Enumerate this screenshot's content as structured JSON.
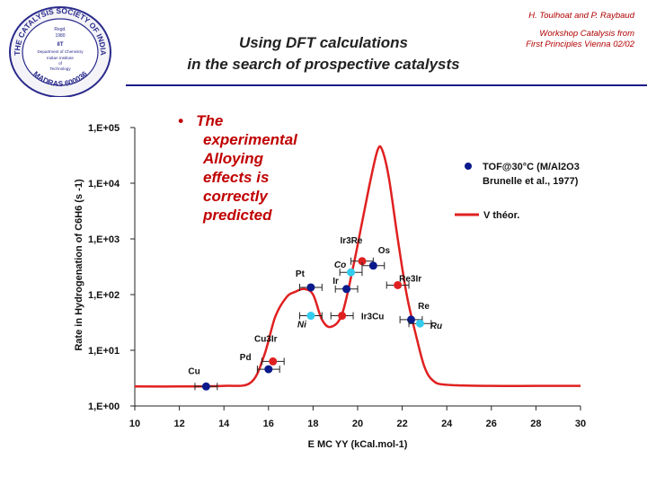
{
  "logo": {
    "ring_text": "THE CATALYSIS SOCIETY OF INDIA",
    "bottom_text": "MADRAS 600036",
    "reg": "Regd.",
    "reg_date": "1980",
    "inner_lines": [
      "IIT",
      "Department of Chemistry",
      "Indian Institute",
      "of",
      "Technology"
    ]
  },
  "header": {
    "title_line1": "Using DFT calculations",
    "title_line2": "in the search of prospective catalysts",
    "authors": "H. Toulhoat and P. Raybaud",
    "workshop_line1": "Workshop Catalysis from",
    "workshop_line2": "First Principles Vienna 02/02"
  },
  "bullet": {
    "marker": "•",
    "lines": [
      "The",
      "experimental",
      "Alloying",
      "effects is",
      "correctly",
      "predicted"
    ]
  },
  "legend": {
    "tof_label_line1": "TOF@30°C (M/Al2O3",
    "tof_label_line2": "Brunelle et al., 1977)",
    "theory_label": "V théor."
  },
  "colors": {
    "curve": "#e02020",
    "dark_point": "#0a1a8c",
    "light_point": "#33ccee",
    "red_point": "#e02020",
    "header_rule": "#1a1a8c",
    "bullet_text": "#c00000"
  },
  "chart_data": {
    "type": "scatter",
    "xlabel": "E MC YY (kCal.mol-1)",
    "ylabel": "Rate in Hydrogenation of C6H6 (s -1)",
    "xlim": [
      10,
      30
    ],
    "ylim_log10": [
      0,
      5
    ],
    "x_ticks": [
      "10",
      "12",
      "14",
      "16",
      "18",
      "20",
      "22",
      "24",
      "26",
      "28",
      "30"
    ],
    "y_ticks": [
      "1,E+00",
      "1,E+01",
      "1,E+02",
      "1,E+03",
      "1,E+04",
      "1,E+05"
    ],
    "theory_curve": {
      "name": "V théor.",
      "x": [
        10,
        12,
        14,
        15.2,
        15.8,
        16.3,
        16.8,
        17.2,
        17.6,
        18,
        18.4,
        18.8,
        19.3,
        19.8,
        20.2,
        20.6,
        20.9,
        21.1,
        21.4,
        21.8,
        22.2,
        22.6,
        23,
        23.4,
        24,
        26,
        28,
        30
      ],
      "log_rate": [
        0.35,
        0.35,
        0.36,
        0.42,
        0.9,
        1.6,
        1.95,
        2.05,
        2.1,
        2.0,
        1.55,
        1.42,
        1.65,
        2.5,
        3.3,
        4.1,
        4.6,
        4.6,
        4.1,
        3.0,
        2.0,
        1.3,
        0.7,
        0.45,
        0.38,
        0.36,
        0.36,
        0.36
      ]
    },
    "points": [
      {
        "label": "Cu",
        "x": 13.2,
        "log_rate": 0.35,
        "kind": "dark",
        "italic": false
      },
      {
        "label": "Pd",
        "x": 16.0,
        "log_rate": 0.66,
        "kind": "dark",
        "italic": false
      },
      {
        "label": "Cu3Ir",
        "x": 16.2,
        "log_rate": 0.8,
        "kind": "red",
        "italic": false
      },
      {
        "label": "Pt",
        "x": 17.9,
        "log_rate": 2.13,
        "kind": "dark",
        "italic": false
      },
      {
        "label": "Ni",
        "x": 17.9,
        "log_rate": 1.62,
        "kind": "light",
        "italic": true
      },
      {
        "label": "Ir3Cu",
        "x": 19.3,
        "log_rate": 1.62,
        "kind": "red",
        "italic": false
      },
      {
        "label": "Ir3Re",
        "x": 20.2,
        "log_rate": 2.6,
        "kind": "red",
        "italic": false
      },
      {
        "label": "Co",
        "x": 19.7,
        "log_rate": 2.4,
        "kind": "light",
        "italic": true
      },
      {
        "label": "Ir",
        "x": 19.5,
        "log_rate": 2.1,
        "kind": "dark",
        "italic": false
      },
      {
        "label": "Os",
        "x": 20.7,
        "log_rate": 2.52,
        "kind": "dark",
        "italic": false
      },
      {
        "label": "Re3Ir",
        "x": 21.8,
        "log_rate": 2.17,
        "kind": "red",
        "italic": false
      },
      {
        "label": "Re",
        "x": 22.4,
        "log_rate": 1.55,
        "kind": "dark",
        "italic": false
      },
      {
        "label": "Ru",
        "x": 22.8,
        "log_rate": 1.48,
        "kind": "light",
        "italic": true
      }
    ],
    "error_bar_half_width": 0.5
  }
}
